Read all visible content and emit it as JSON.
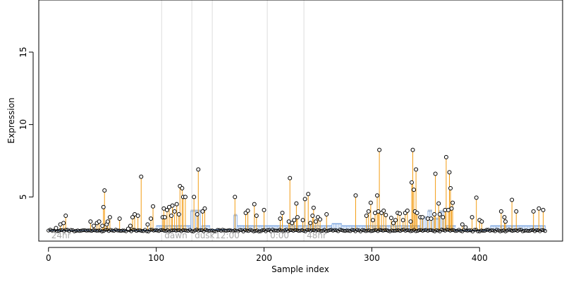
{
  "chart_data": {
    "type": "scatter",
    "xlabel": "Sample index",
    "ylabel": "Expression",
    "xlim": [
      -9,
      477
    ],
    "ylim": [
      1.95,
      18.6
    ],
    "x_ticks": [
      0,
      100,
      200,
      300,
      400
    ],
    "y_ticks": [
      5,
      10,
      15
    ],
    "grid": false,
    "baseline": 2.68,
    "annotations": [
      {
        "x": 0,
        "label": "24hr"
      },
      {
        "x": 105,
        "label": "dawn"
      },
      {
        "x": 133,
        "label": "dusk"
      },
      {
        "x": 152,
        "label": "12:00"
      },
      {
        "x": 203,
        "label": "0:00"
      },
      {
        "x": 237,
        "label": "48hr"
      }
    ],
    "spikes": [
      {
        "x": 7,
        "y": 2.85
      },
      {
        "x": 11,
        "y": 3.1
      },
      {
        "x": 14,
        "y": 3.2
      },
      {
        "x": 16,
        "y": 3.7
      },
      {
        "x": 39,
        "y": 3.3
      },
      {
        "x": 42,
        "y": 3.0
      },
      {
        "x": 45,
        "y": 3.2
      },
      {
        "x": 47,
        "y": 3.3
      },
      {
        "x": 50,
        "y": 3.0
      },
      {
        "x": 51,
        "y": 4.3
      },
      {
        "x": 52,
        "y": 5.45
      },
      {
        "x": 54,
        "y": 3.1
      },
      {
        "x": 55,
        "y": 3.3
      },
      {
        "x": 57,
        "y": 3.6
      },
      {
        "x": 66,
        "y": 3.5
      },
      {
        "x": 74,
        "y": 2.8
      },
      {
        "x": 76,
        "y": 3.0
      },
      {
        "x": 78,
        "y": 3.6
      },
      {
        "x": 80,
        "y": 3.8
      },
      {
        "x": 83,
        "y": 3.7
      },
      {
        "x": 86,
        "y": 6.4
      },
      {
        "x": 92,
        "y": 3.1
      },
      {
        "x": 95,
        "y": 3.5
      },
      {
        "x": 97,
        "y": 4.35
      },
      {
        "x": 106,
        "y": 3.6
      },
      {
        "x": 107,
        "y": 4.2
      },
      {
        "x": 108,
        "y": 3.6
      },
      {
        "x": 110,
        "y": 4.1
      },
      {
        "x": 112,
        "y": 4.3
      },
      {
        "x": 114,
        "y": 3.7
      },
      {
        "x": 115,
        "y": 4.4
      },
      {
        "x": 117,
        "y": 4.0
      },
      {
        "x": 119,
        "y": 4.5
      },
      {
        "x": 121,
        "y": 3.8
      },
      {
        "x": 122,
        "y": 5.75
      },
      {
        "x": 124,
        "y": 5.6
      },
      {
        "x": 125,
        "y": 5.0
      },
      {
        "x": 127,
        "y": 5.0
      },
      {
        "x": 135,
        "y": 5.0
      },
      {
        "x": 138,
        "y": 3.8
      },
      {
        "x": 139,
        "y": 6.9
      },
      {
        "x": 143,
        "y": 4.0
      },
      {
        "x": 145,
        "y": 4.2
      },
      {
        "x": 173,
        "y": 5.0
      },
      {
        "x": 183,
        "y": 3.9
      },
      {
        "x": 185,
        "y": 4.05
      },
      {
        "x": 191,
        "y": 4.5
      },
      {
        "x": 193,
        "y": 3.7
      },
      {
        "x": 200,
        "y": 4.1
      },
      {
        "x": 215,
        "y": 3.5
      },
      {
        "x": 217,
        "y": 3.9
      },
      {
        "x": 223,
        "y": 3.3
      },
      {
        "x": 224,
        "y": 6.3
      },
      {
        "x": 226,
        "y": 3.2
      },
      {
        "x": 228,
        "y": 3.4
      },
      {
        "x": 230,
        "y": 4.55
      },
      {
        "x": 231,
        "y": 3.6
      },
      {
        "x": 236,
        "y": 3.4
      },
      {
        "x": 238,
        "y": 4.85
      },
      {
        "x": 241,
        "y": 5.2
      },
      {
        "x": 243,
        "y": 3.2
      },
      {
        "x": 245,
        "y": 3.7
      },
      {
        "x": 246,
        "y": 4.25
      },
      {
        "x": 248,
        "y": 3.3
      },
      {
        "x": 250,
        "y": 3.6
      },
      {
        "x": 252,
        "y": 3.45
      },
      {
        "x": 258,
        "y": 3.8
      },
      {
        "x": 285,
        "y": 5.1
      },
      {
        "x": 295,
        "y": 3.7
      },
      {
        "x": 297,
        "y": 4.0
      },
      {
        "x": 299,
        "y": 4.6
      },
      {
        "x": 301,
        "y": 3.4
      },
      {
        "x": 303,
        "y": 3.9
      },
      {
        "x": 305,
        "y": 5.1
      },
      {
        "x": 306,
        "y": 4.0
      },
      {
        "x": 307,
        "y": 8.25
      },
      {
        "x": 309,
        "y": 3.9
      },
      {
        "x": 311,
        "y": 4.05
      },
      {
        "x": 313,
        "y": 3.75
      },
      {
        "x": 318,
        "y": 3.55
      },
      {
        "x": 320,
        "y": 3.2
      },
      {
        "x": 322,
        "y": 3.4
      },
      {
        "x": 324,
        "y": 3.9
      },
      {
        "x": 326,
        "y": 3.85
      },
      {
        "x": 329,
        "y": 3.4
      },
      {
        "x": 331,
        "y": 3.9
      },
      {
        "x": 333,
        "y": 4.05
      },
      {
        "x": 336,
        "y": 3.3
      },
      {
        "x": 337,
        "y": 6.0
      },
      {
        "x": 338,
        "y": 8.25
      },
      {
        "x": 339,
        "y": 5.5
      },
      {
        "x": 340,
        "y": 4.0
      },
      {
        "x": 341,
        "y": 6.9
      },
      {
        "x": 342,
        "y": 3.9
      },
      {
        "x": 345,
        "y": 3.6
      },
      {
        "x": 347,
        "y": 3.6
      },
      {
        "x": 352,
        "y": 3.5
      },
      {
        "x": 355,
        "y": 3.5
      },
      {
        "x": 358,
        "y": 3.8
      },
      {
        "x": 359,
        "y": 6.6
      },
      {
        "x": 362,
        "y": 4.55
      },
      {
        "x": 363,
        "y": 3.8
      },
      {
        "x": 366,
        "y": 3.6
      },
      {
        "x": 368,
        "y": 4.1
      },
      {
        "x": 369,
        "y": 7.75
      },
      {
        "x": 371,
        "y": 4.1
      },
      {
        "x": 372,
        "y": 6.7
      },
      {
        "x": 373,
        "y": 5.6
      },
      {
        "x": 374,
        "y": 4.2
      },
      {
        "x": 375,
        "y": 4.6
      },
      {
        "x": 384,
        "y": 3.1
      },
      {
        "x": 387,
        "y": 2.9
      },
      {
        "x": 393,
        "y": 3.6
      },
      {
        "x": 397,
        "y": 4.95
      },
      {
        "x": 400,
        "y": 3.4
      },
      {
        "x": 402,
        "y": 3.3
      },
      {
        "x": 420,
        "y": 4.0
      },
      {
        "x": 423,
        "y": 3.6
      },
      {
        "x": 424,
        "y": 3.3
      },
      {
        "x": 430,
        "y": 4.8
      },
      {
        "x": 434,
        "y": 4.0
      },
      {
        "x": 450,
        "y": 4.0
      },
      {
        "x": 455,
        "y": 4.2
      },
      {
        "x": 459,
        "y": 4.1
      }
    ],
    "fit_segments": [
      {
        "x0": 0,
        "x1": 100,
        "y": 2.68
      },
      {
        "x0": 100,
        "x1": 132,
        "y": 3.0
      },
      {
        "x0": 132,
        "x1": 142,
        "y": 4.05
      },
      {
        "x0": 142,
        "x1": 150,
        "y": 3.0
      },
      {
        "x0": 150,
        "x1": 172,
        "y": 2.75
      },
      {
        "x0": 172,
        "x1": 175,
        "y": 3.75
      },
      {
        "x0": 175,
        "x1": 263,
        "y": 3.0
      },
      {
        "x0": 263,
        "x1": 272,
        "y": 3.15
      },
      {
        "x0": 272,
        "x1": 345,
        "y": 3.0
      },
      {
        "x0": 345,
        "x1": 352,
        "y": 3.6
      },
      {
        "x0": 352,
        "x1": 356,
        "y": 4.05
      },
      {
        "x0": 356,
        "x1": 362,
        "y": 3.5
      },
      {
        "x0": 362,
        "x1": 368,
        "y": 4.0
      },
      {
        "x0": 368,
        "x1": 378,
        "y": 3.0
      },
      {
        "x0": 378,
        "x1": 410,
        "y": 2.68
      },
      {
        "x0": 410,
        "x1": 461,
        "y": 3.0
      }
    ],
    "colors": {
      "spike": "#f39c12",
      "fit": "#7ea7e0",
      "fit_wide": "#b9c4d3",
      "vline": "#dddddd",
      "point_stroke": "#000000",
      "axis": "#000000",
      "annotation": "#aaaaaa"
    }
  }
}
